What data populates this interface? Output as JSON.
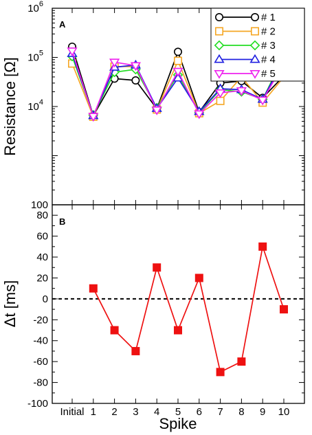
{
  "chart_data": [
    {
      "type": "line",
      "panel_label": "A",
      "ylabel_text": "Resistance [",
      "ylabel_unit": "Ω",
      "ylabel_close": "]",
      "yscale": "log",
      "ylim": [
        100,
        1000000
      ],
      "y_tick_base": "10",
      "y_ticks": [
        {
          "value": 100,
          "label": "100",
          "exp": ""
        },
        {
          "value": 10000,
          "label": "10",
          "exp": "4"
        },
        {
          "value": 100000,
          "label": "10",
          "exp": "5"
        },
        {
          "value": 1000000,
          "label": "10",
          "exp": "6"
        }
      ],
      "x": [
        0,
        1,
        2,
        3,
        4,
        5,
        6,
        7,
        8,
        9,
        10
      ],
      "legend_position": "top-right",
      "series": [
        {
          "name": "# 1",
          "color": "#000000",
          "marker": "circle",
          "values": [
            165000,
            6500,
            37000,
            34000,
            9000,
            130000,
            7700,
            30000,
            33000,
            15000,
            42000
          ]
        },
        {
          "name": "# 2",
          "color": "#f5a623",
          "marker": "square",
          "values": [
            75000,
            6200,
            65000,
            65000,
            8700,
            85000,
            7300,
            13000,
            40000,
            12000,
            40000
          ]
        },
        {
          "name": "# 3",
          "color": "#22dd22",
          "marker": "diamond",
          "values": [
            105000,
            6700,
            50000,
            57000,
            9400,
            44000,
            7500,
            22000,
            20000,
            14000,
            105000
          ]
        },
        {
          "name": "# 4",
          "color": "#1f1fe0",
          "marker": "triangle-up",
          "values": [
            120000,
            6500,
            63000,
            70000,
            9100,
            38000,
            7900,
            23000,
            22000,
            14000,
            90000
          ]
        },
        {
          "name": "# 5",
          "color": "#ee22ee",
          "marker": "triangle-down",
          "values": [
            135000,
            6300,
            80000,
            68000,
            8500,
            52000,
            7100,
            19000,
            21000,
            13500,
            75000
          ]
        }
      ]
    },
    {
      "type": "line",
      "panel_label": "B",
      "ylabel_text": "Δt [ms]",
      "ylim": [
        -100,
        90
      ],
      "y_ticks": [
        -100,
        -80,
        -60,
        -40,
        -20,
        0,
        20,
        40,
        60,
        80
      ],
      "xlabel": "Spike",
      "x_tick_labels": [
        "Initial",
        "1",
        "2",
        "3",
        "4",
        "5",
        "6",
        "7",
        "8",
        "9",
        "10"
      ],
      "x": [
        1,
        2,
        3,
        4,
        5,
        6,
        7,
        8,
        9,
        10
      ],
      "zero_line": true,
      "series": [
        {
          "color": "#ee1111",
          "marker": "square",
          "values": [
            10,
            -30,
            -50,
            30,
            -30,
            20,
            -70,
            -60,
            50,
            -10
          ]
        }
      ]
    }
  ]
}
